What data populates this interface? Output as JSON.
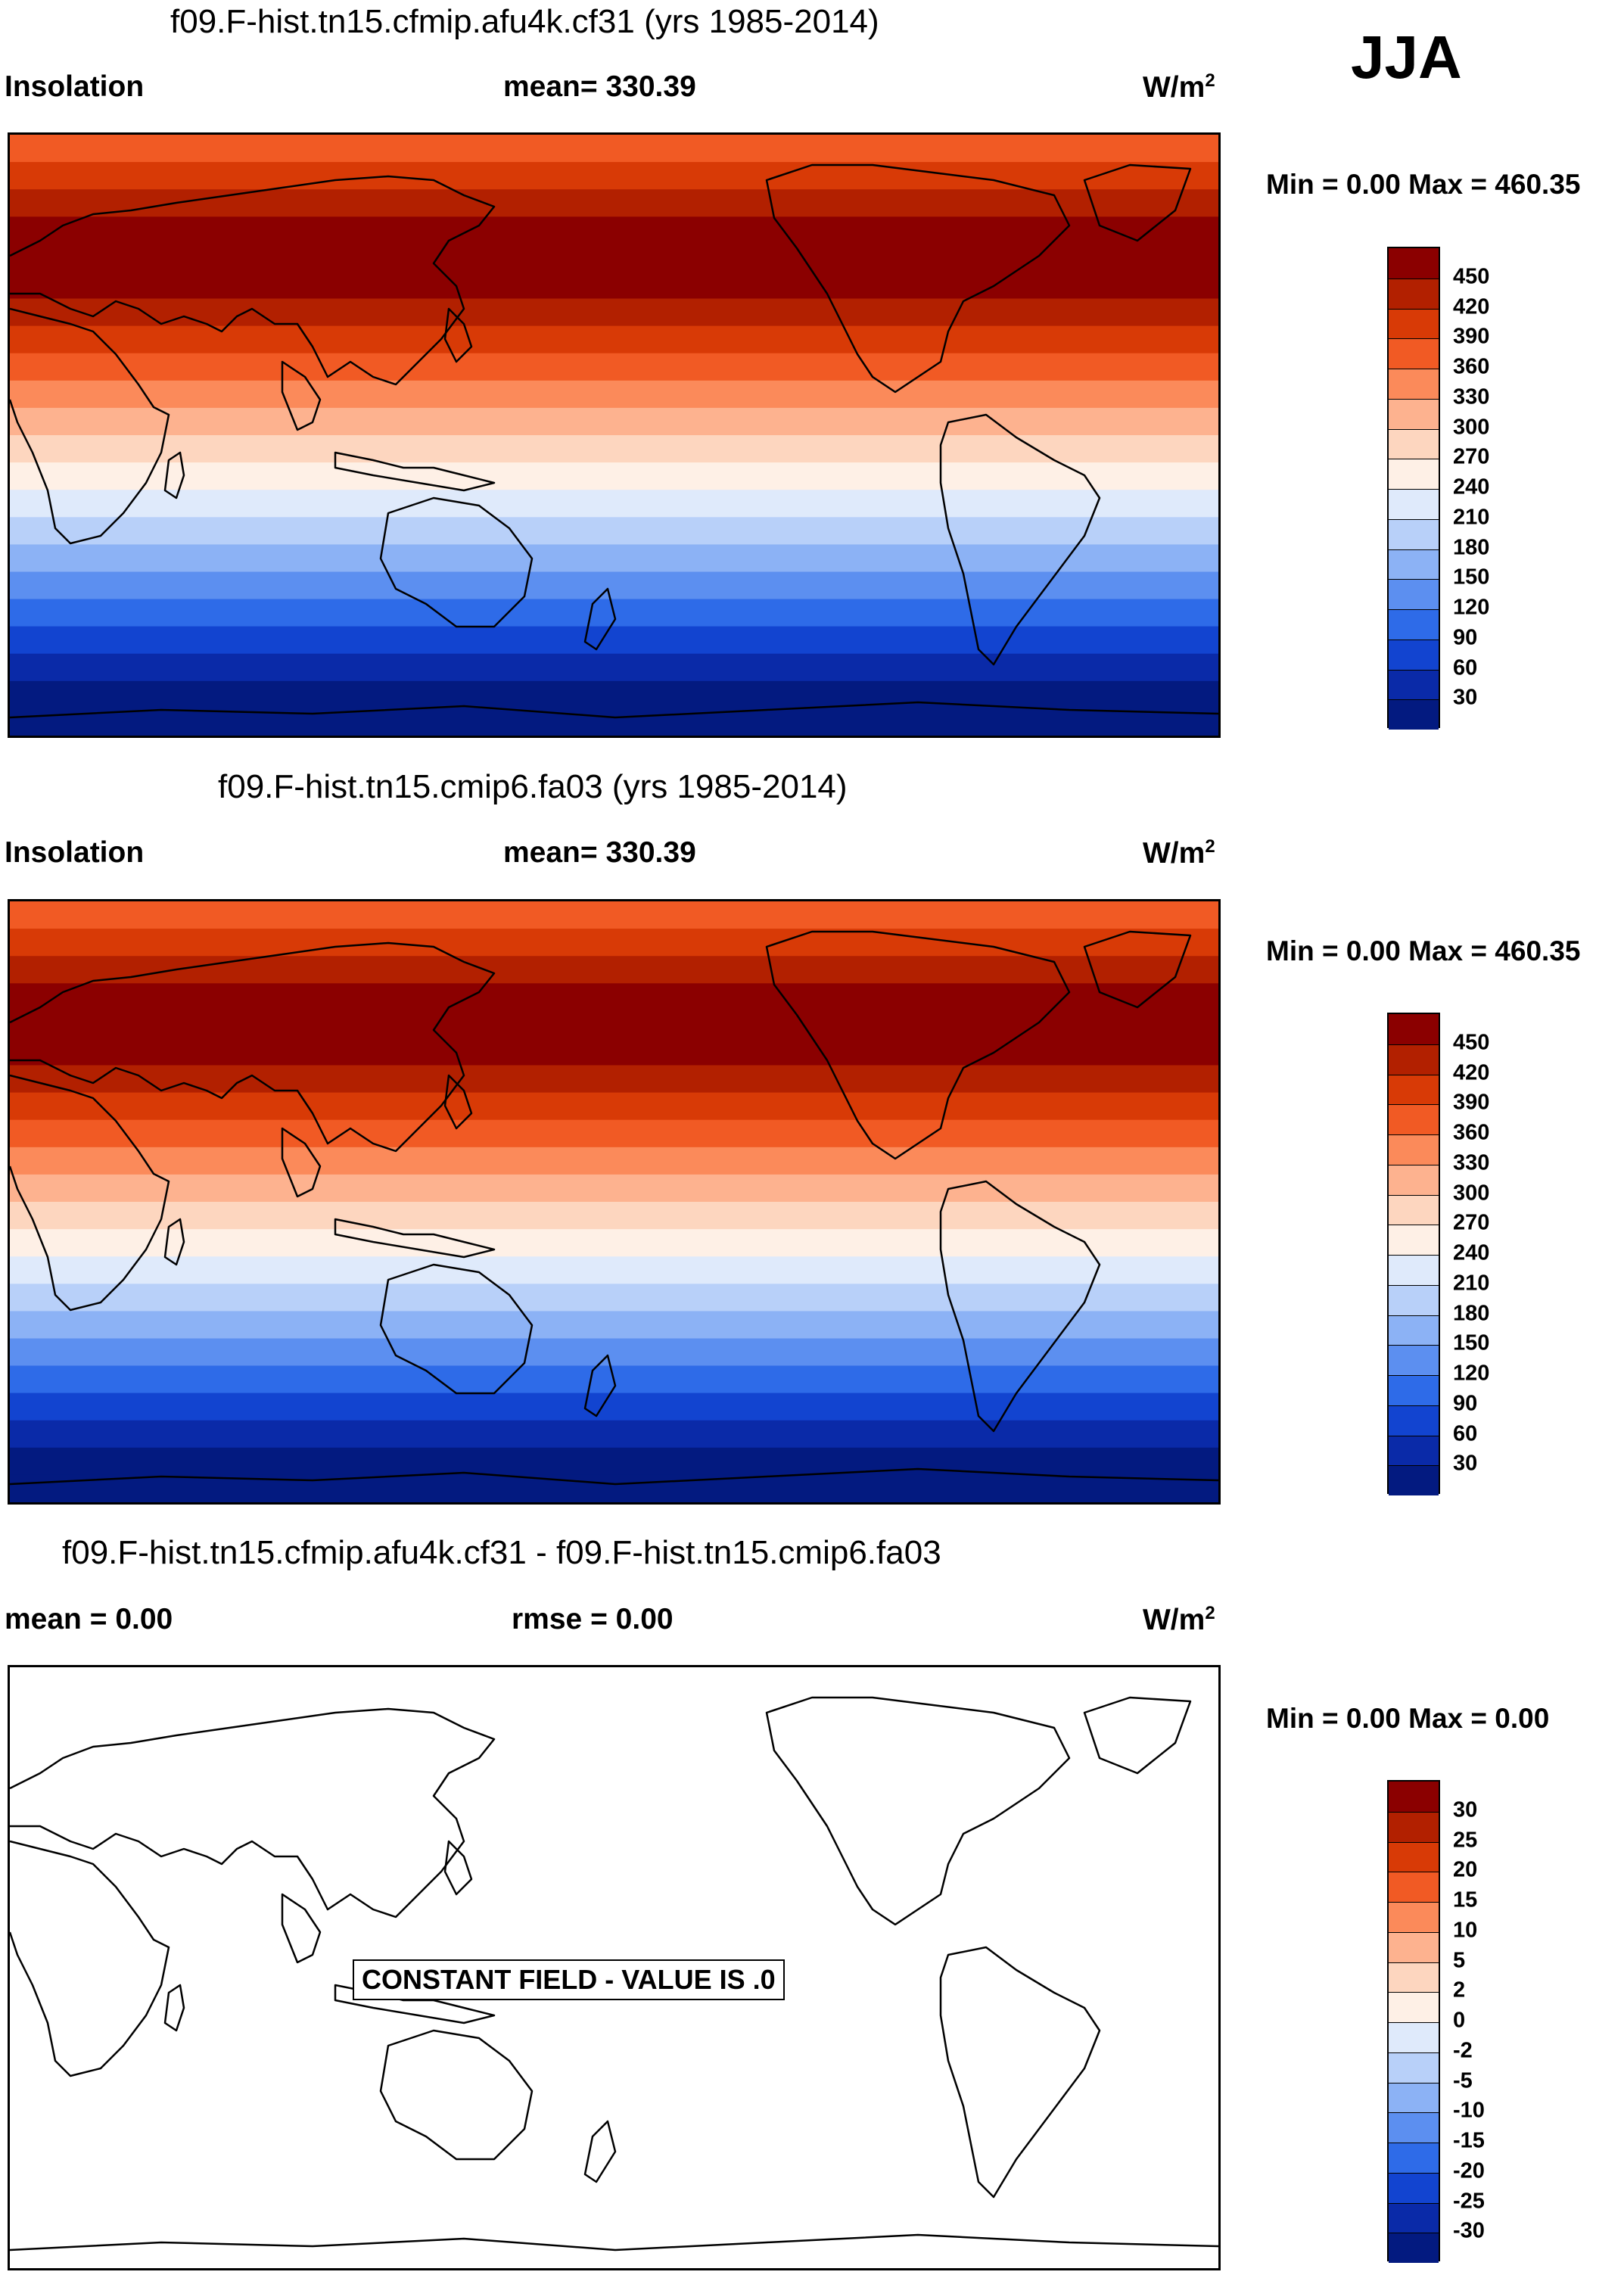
{
  "season": "JJA",
  "panels": [
    {
      "title": "f09.F-hist.tn15.cfmip.afu4k.cf31 (yrs 1985-2014)",
      "left_label": "Insolation",
      "center_label": "mean= 330.39",
      "units": "W/m",
      "units_sup": "2",
      "minmax": "Min =   0.00 Max = 460.35"
    },
    {
      "title": "f09.F-hist.tn15.cmip6.fa03 (yrs 1985-2014)",
      "left_label": "Insolation",
      "center_label": "mean= 330.39",
      "units": "W/m",
      "units_sup": "2",
      "minmax": "Min =   0.00 Max = 460.35"
    },
    {
      "title": "f09.F-hist.tn15.cfmip.afu4k.cf31 - f09.F-hist.tn15.cmip6.fa03",
      "left_label": "mean =   0.00",
      "center_label": "rmse =   0.00",
      "units": "W/m",
      "units_sup": "2",
      "minmax": "Min =   0.00 Max =   0.00",
      "constant_field_text": "CONSTANT FIELD - VALUE IS .0"
    }
  ],
  "chart_data": [
    {
      "type": "heatmap",
      "title": "f09.F-hist.tn15.cfmip.afu4k.cf31 (yrs 1985-2014)",
      "variable": "Insolation",
      "units": "W/m2",
      "mean": 330.39,
      "min": 0.0,
      "max": 460.35,
      "colorbar_levels": [
        450,
        420,
        390,
        360,
        330,
        300,
        270,
        240,
        210,
        180,
        150,
        120,
        90,
        60,
        30
      ],
      "colorbar_colors": [
        "#8b0000",
        "#b22000",
        "#d83a06",
        "#f15a24",
        "#fb8a5a",
        "#fdb28f",
        "#fdd6bf",
        "#fef0e6",
        "#dfeafb",
        "#b8d0f9",
        "#8cb2f5",
        "#5c8ff0",
        "#2e6be8",
        "#1244d0",
        "#0a2aa8",
        "#031a80"
      ],
      "band_levels_north_to_south": [
        360,
        390,
        420,
        450,
        460,
        450,
        420,
        390,
        360,
        330,
        300,
        270,
        240,
        210,
        180,
        150,
        120,
        90,
        60,
        30,
        0,
        0
      ]
    },
    {
      "type": "heatmap",
      "title": "f09.F-hist.tn15.cmip6.fa03 (yrs 1985-2014)",
      "variable": "Insolation",
      "units": "W/m2",
      "mean": 330.39,
      "min": 0.0,
      "max": 460.35,
      "colorbar_levels": [
        450,
        420,
        390,
        360,
        330,
        300,
        270,
        240,
        210,
        180,
        150,
        120,
        90,
        60,
        30
      ],
      "colorbar_colors": [
        "#8b0000",
        "#b22000",
        "#d83a06",
        "#f15a24",
        "#fb8a5a",
        "#fdb28f",
        "#fdd6bf",
        "#fef0e6",
        "#dfeafb",
        "#b8d0f9",
        "#8cb2f5",
        "#5c8ff0",
        "#2e6be8",
        "#1244d0",
        "#0a2aa8",
        "#031a80"
      ],
      "band_levels_north_to_south": [
        360,
        390,
        420,
        450,
        460,
        450,
        420,
        390,
        360,
        330,
        300,
        270,
        240,
        210,
        180,
        150,
        120,
        90,
        60,
        30,
        0,
        0
      ]
    },
    {
      "type": "heatmap",
      "title": "f09.F-hist.tn15.cfmip.afu4k.cf31 - f09.F-hist.tn15.cmip6.fa03",
      "units": "W/m2",
      "mean": 0.0,
      "rmse": 0.0,
      "min": 0.0,
      "max": 0.0,
      "colorbar_levels": [
        30,
        25,
        20,
        15,
        10,
        5,
        2,
        0,
        -2,
        -5,
        -10,
        -15,
        -20,
        -25,
        -30
      ],
      "colorbar_colors": [
        "#8b0000",
        "#b22000",
        "#d83a06",
        "#f15a24",
        "#fb8a5a",
        "#fdb28f",
        "#fdd6bf",
        "#fef0e6",
        "#dfeafb",
        "#b8d0f9",
        "#8cb2f5",
        "#5c8ff0",
        "#2e6be8",
        "#1244d0",
        "#0a2aa8",
        "#031a80"
      ],
      "constant_value": 0.0
    }
  ]
}
